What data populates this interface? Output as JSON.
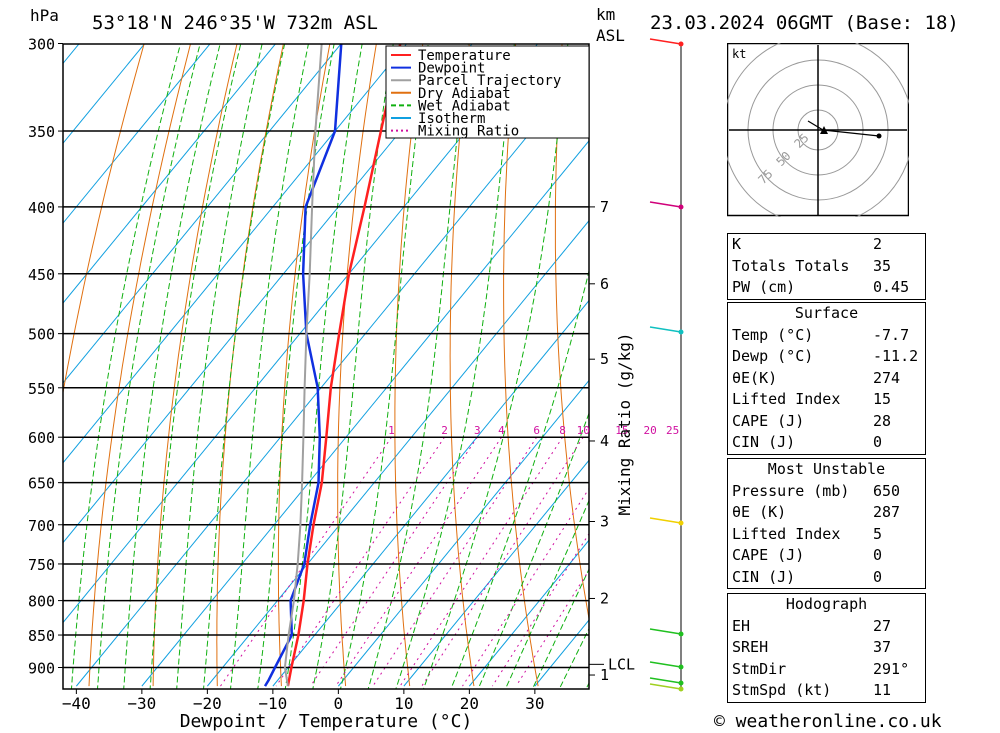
{
  "header": {
    "pressure_unit": "hPa",
    "location": "53°18'N  246°35'W  732m  ASL",
    "height_unit_km": "km",
    "height_unit_asl": "ASL",
    "datetime": "23.03.2024  06GMT  (Base: 18)"
  },
  "chart_data": {
    "type": "skew-t log-p",
    "xlabel": "Dewpoint / Temperature (°C)",
    "ylabel": "hPa",
    "mixing_ratio_label": "Mixing Ratio (g/kg)",
    "x_ticks": [
      -40,
      -30,
      -20,
      -10,
      0,
      10,
      20,
      30
    ],
    "pressure_ticks": [
      300,
      350,
      400,
      450,
      500,
      550,
      600,
      650,
      700,
      750,
      800,
      850,
      900
    ],
    "pressure_range": [
      300,
      930
    ],
    "height_ticks": [
      {
        "label": "7",
        "p": 400
      },
      {
        "label": "6",
        "p": 458
      },
      {
        "label": "5",
        "p": 523
      },
      {
        "label": "4",
        "p": 604
      },
      {
        "label": "3",
        "p": 696
      },
      {
        "label": "2",
        "p": 797
      },
      {
        "label": "1",
        "p": 912
      }
    ],
    "lcl": {
      "label": "LCL",
      "p": 895
    },
    "mixing_ratio_values": [
      "1",
      "2",
      "3",
      "4",
      "6",
      "8",
      "10",
      "15",
      "20",
      "25"
    ],
    "legend": [
      {
        "name": "Temperature",
        "color": "#ff2020",
        "style": "solid"
      },
      {
        "name": "Dewpoint",
        "color": "#1030e0",
        "style": "solid"
      },
      {
        "name": "Parcel Trajectory",
        "color": "#a0a0a0",
        "style": "solid"
      },
      {
        "name": "Dry Adiabat",
        "color": "#e07010",
        "style": "solid"
      },
      {
        "name": "Wet Adiabat",
        "color": "#10b010",
        "style": "dashed"
      },
      {
        "name": "Isotherm",
        "color": "#10a0e0",
        "style": "solid"
      },
      {
        "name": "Mixing Ratio",
        "color": "#d010a0",
        "style": "dotted"
      }
    ],
    "series": [
      {
        "name": "Temperature",
        "points": [
          [
            930,
            -7.7
          ],
          [
            900,
            -9.5
          ],
          [
            850,
            -12.5
          ],
          [
            800,
            -16
          ],
          [
            750,
            -20
          ],
          [
            700,
            -24
          ],
          [
            650,
            -28
          ],
          [
            600,
            -33
          ],
          [
            550,
            -38.5
          ],
          [
            500,
            -44
          ],
          [
            450,
            -50
          ],
          [
            400,
            -56
          ],
          [
            350,
            -63
          ],
          [
            300,
            -71
          ]
        ]
      },
      {
        "name": "Dewpoint",
        "points": [
          [
            930,
            -11.2
          ],
          [
            920,
            -11.4
          ],
          [
            900,
            -12
          ],
          [
            850,
            -13.5
          ],
          [
            800,
            -18
          ],
          [
            750,
            -20.5
          ],
          [
            700,
            -24.5
          ],
          [
            650,
            -28.5
          ],
          [
            600,
            -34
          ],
          [
            550,
            -40.5
          ],
          [
            500,
            -49
          ],
          [
            450,
            -57
          ],
          [
            400,
            -65
          ],
          [
            350,
            -70
          ],
          [
            300,
            -80
          ]
        ]
      },
      {
        "name": "Parcel Trajectory",
        "points": [
          [
            930,
            -7.7
          ],
          [
            900,
            -10.5
          ],
          [
            850,
            -14
          ],
          [
            800,
            -17.5
          ],
          [
            750,
            -21.5
          ],
          [
            700,
            -26
          ],
          [
            650,
            -31
          ],
          [
            600,
            -36.5
          ],
          [
            550,
            -42.5
          ],
          [
            500,
            -49
          ],
          [
            450,
            -56
          ],
          [
            400,
            -64
          ],
          [
            350,
            -73
          ],
          [
            300,
            -83
          ]
        ]
      }
    ]
  },
  "hodograph": {
    "unit": "kt",
    "ring_labels": [
      "25",
      "50",
      "75"
    ]
  },
  "indices": [
    {
      "label": "K",
      "value": "2"
    },
    {
      "label": "Totals Totals",
      "value": "35"
    },
    {
      "label": "PW (cm)",
      "value": "0.45"
    }
  ],
  "surface": {
    "title": "Surface",
    "rows": [
      {
        "label": "Temp (°C)",
        "value": "-7.7"
      },
      {
        "label": "Dewp (°C)",
        "value": "-11.2"
      },
      {
        "label": "θE(K)",
        "value": "274"
      },
      {
        "label": "Lifted Index",
        "value": "15"
      },
      {
        "label": "CAPE (J)",
        "value": "28"
      },
      {
        "label": "CIN (J)",
        "value": "0"
      }
    ]
  },
  "most_unstable": {
    "title": "Most Unstable",
    "rows": [
      {
        "label": "Pressure (mb)",
        "value": "650"
      },
      {
        "label": "θE (K)",
        "value": "287"
      },
      {
        "label": "Lifted Index",
        "value": "5"
      },
      {
        "label": "CAPE (J)",
        "value": "0"
      },
      {
        "label": "CIN (J)",
        "value": "0"
      }
    ]
  },
  "hodo_indices": {
    "title": "Hodograph",
    "rows": [
      {
        "label": "EH",
        "value": "27"
      },
      {
        "label": "SREH",
        "value": "37"
      },
      {
        "label": "StmDir",
        "value": "291°"
      },
      {
        "label": "StmSpd (kt)",
        "value": "11"
      }
    ]
  },
  "footer": {
    "copyright": "© weatheronline.co.uk"
  }
}
